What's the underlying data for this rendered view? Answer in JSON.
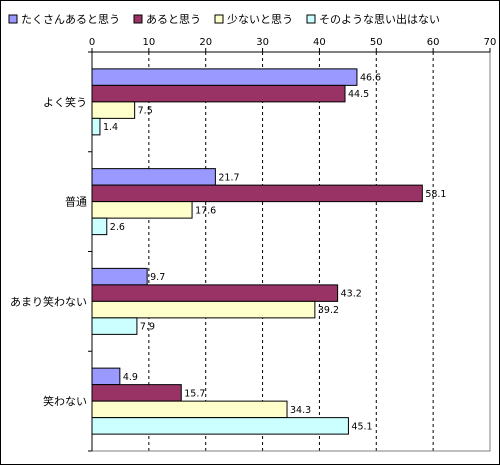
{
  "chart_data": {
    "type": "bar",
    "orientation": "horizontal",
    "categories": [
      "よく笑う",
      "普通",
      "あまり笑わない",
      "笑わない"
    ],
    "series": [
      {
        "name": "たくさんあると思う",
        "color": "#9999ff",
        "values": [
          46.6,
          21.7,
          9.7,
          4.9
        ]
      },
      {
        "name": "あると思う",
        "color": "#993366",
        "values": [
          44.5,
          58.1,
          43.2,
          15.7
        ]
      },
      {
        "name": "少ないと思う",
        "color": "#ffffcc",
        "values": [
          7.5,
          17.6,
          39.2,
          34.3
        ]
      },
      {
        "name": "そのような思い出はない",
        "color": "#ccffff",
        "values": [
          1.4,
          2.6,
          7.9,
          45.1
        ]
      }
    ],
    "xlim": [
      0,
      70
    ],
    "x_ticks": [
      0,
      10,
      20,
      30,
      40,
      50,
      60,
      70
    ],
    "x_axis_position": "top",
    "grid": "vertical-dashed",
    "legend_position": "top",
    "data_labels": true
  }
}
